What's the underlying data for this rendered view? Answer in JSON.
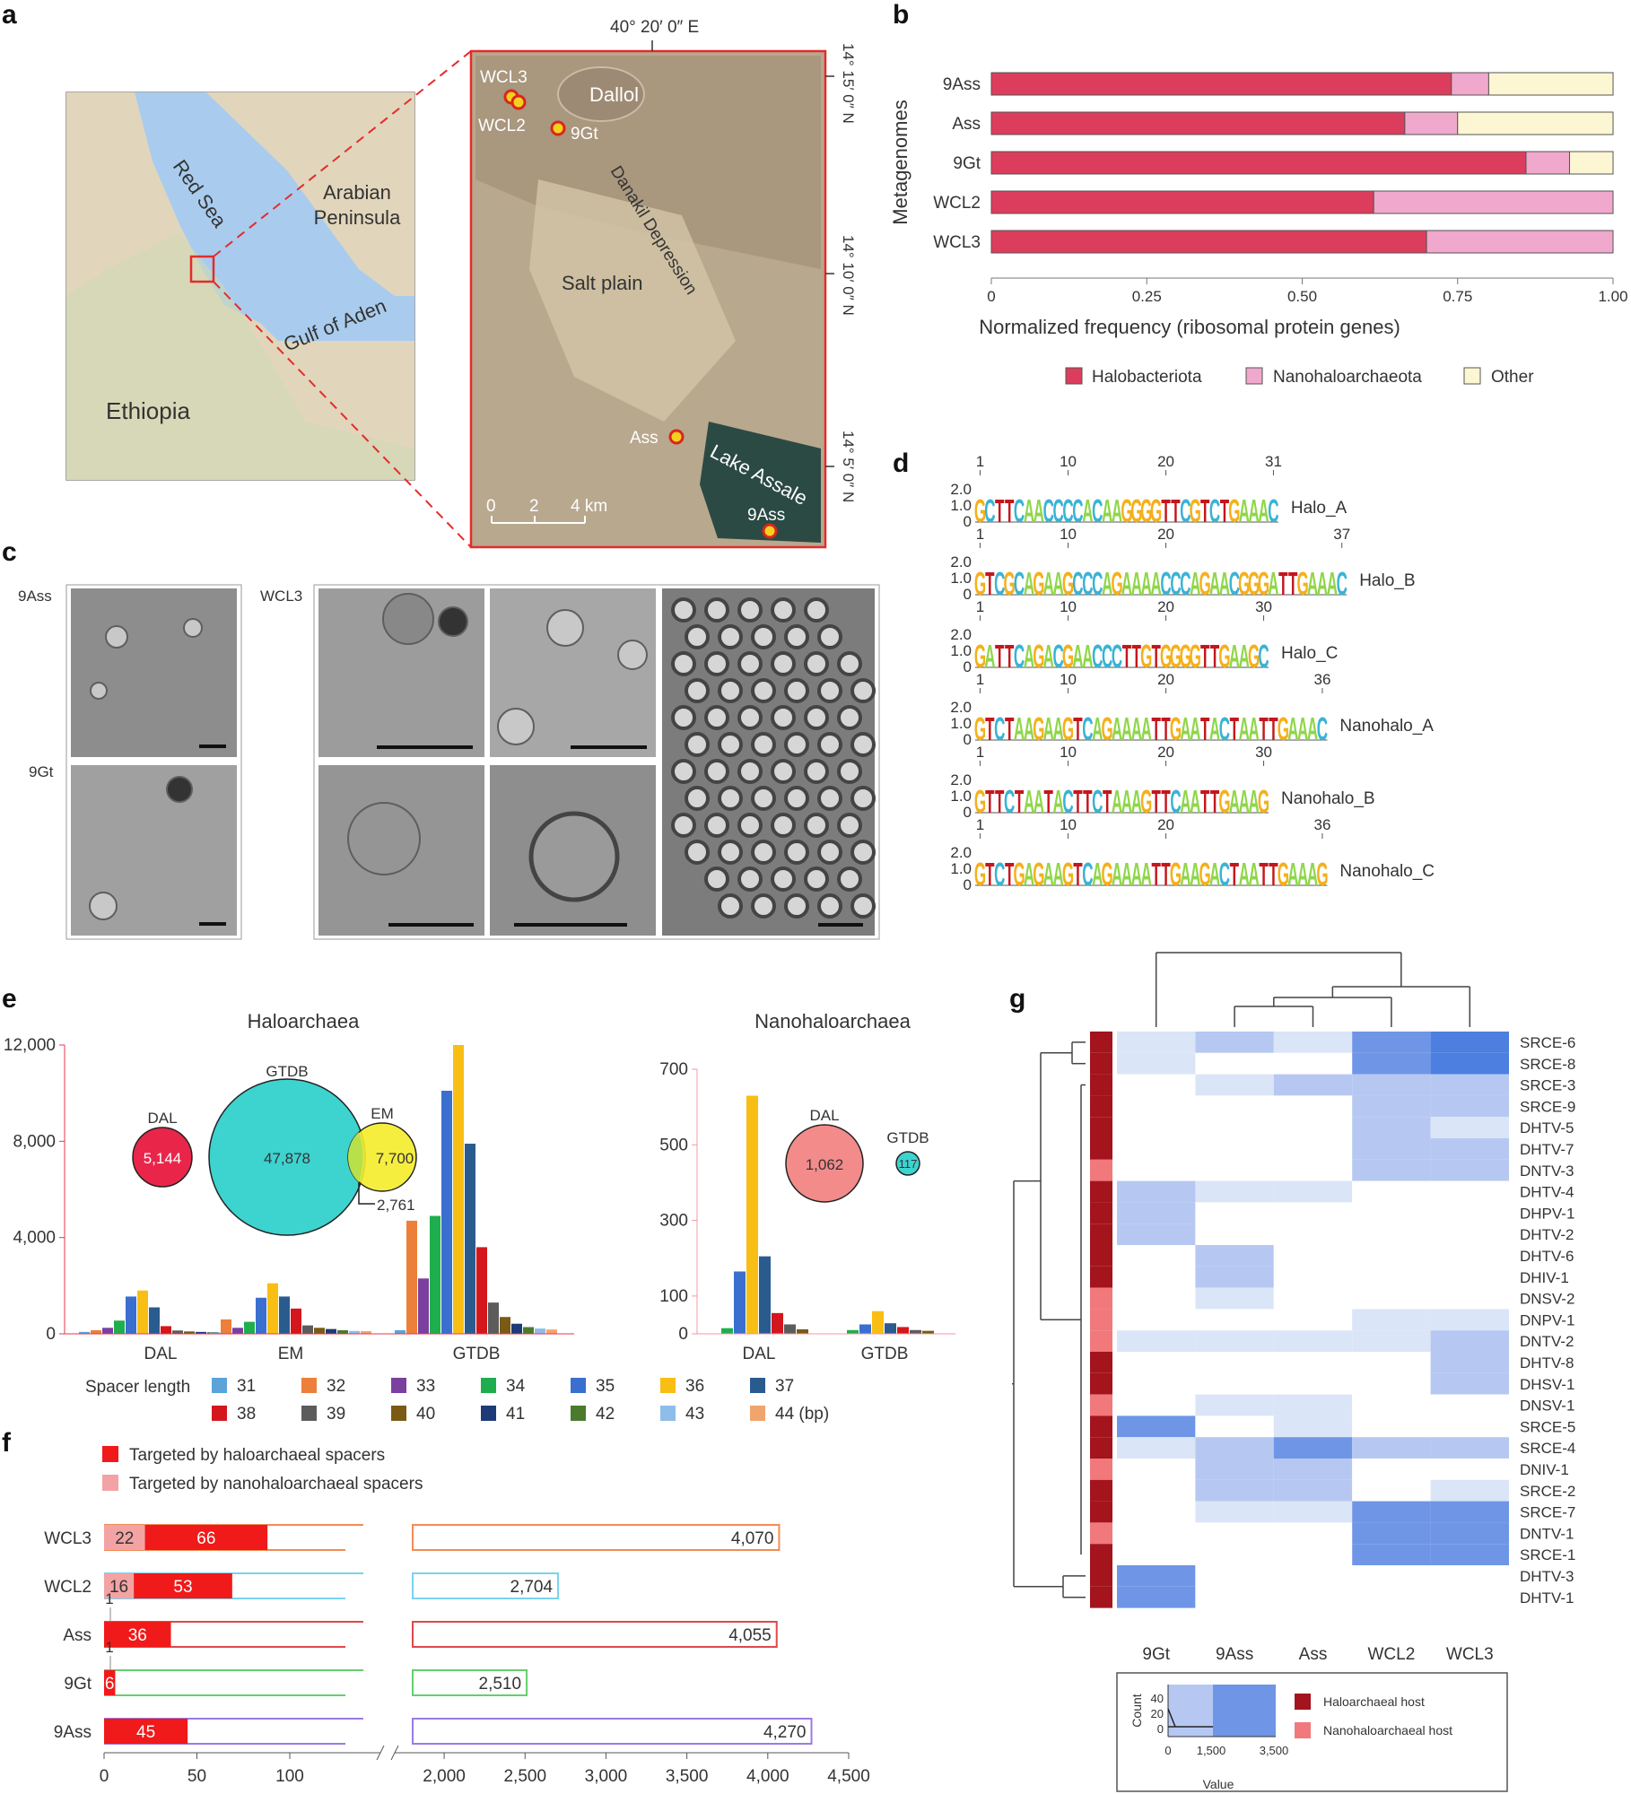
{
  "panels": {
    "a": {
      "label": "a",
      "map_labels": {
        "red_sea": "Red Sea",
        "arabian": [
          "Arabian",
          "Peninsula"
        ],
        "gulf": "Gulf of Aden",
        "ethiopia": "Ethiopia"
      },
      "inset": {
        "lon": "40° 20′ 0″ E",
        "lat": [
          "14° 15′ 0″ N",
          "14° 10′ 0″ N",
          "14° 5′ 0″ N"
        ],
        "places": {
          "dallol": "Dallol",
          "danakil": "Danakil Depression",
          "salt_plain": "Salt plain",
          "lake": "Lake Assale"
        },
        "sites": [
          "WCL3",
          "WCL2",
          "9Gt",
          "Ass",
          "9Ass"
        ],
        "scale": [
          "0",
          "2",
          "4 km"
        ]
      }
    },
    "b": {
      "label": "b",
      "chart_data": {
        "type": "bar",
        "orientation": "horizontal",
        "stacked": true,
        "categories": [
          "9Ass",
          "Ass",
          "9Gt",
          "WCL2",
          "WCL3"
        ],
        "series": [
          {
            "name": "Halobacteriota",
            "color": "#dc3d5c",
            "values": [
              0.74,
              0.665,
              0.86,
              0.615,
              0.7
            ]
          },
          {
            "name": "Nanohaloarchaeota",
            "color": "#f0a8cc",
            "values": [
              0.06,
              0.085,
              0.07,
              0.385,
              0.3
            ]
          },
          {
            "name": "Other",
            "color": "#fdf6d2",
            "values": [
              0.2,
              0.25,
              0.07,
              0,
              0
            ]
          }
        ],
        "xlabel": "Normalized frequency (ribosomal protein genes)",
        "ylabel": "Metagenomes",
        "xlim": [
          0,
          1
        ],
        "xticks": [
          "0",
          "0.25",
          "0.50",
          "0.75",
          "1.00"
        ]
      }
    },
    "c": {
      "label": "c",
      "labels": [
        "9Ass",
        "9Gt",
        "WCL3"
      ]
    },
    "d": {
      "label": "d",
      "logos": [
        {
          "name": "Halo_A",
          "seq": "GCTTCAACCCCACAAGGGGTTCGTCTGAAAC",
          "marks": [
            "1",
            "10",
            "20",
            "31"
          ]
        },
        {
          "name": "Halo_B",
          "seq": "GTCGCAGAAGCCCAGAAAACCCAGAACGGGATTGAAAC",
          "marks": [
            "1",
            "10",
            "20",
            "37"
          ]
        },
        {
          "name": "Halo_C",
          "seq": "GATTCAGACGAACCCTTGTGGGGTTGAAGC",
          "marks": [
            "1",
            "10",
            "20",
            "30"
          ]
        },
        {
          "name": "Nanohalo_A",
          "seq": "GTCTAAGAAGTCAGAAAATTGAATACTAATTGAAAC",
          "marks": [
            "1",
            "10",
            "20",
            "36"
          ]
        },
        {
          "name": "Nanohalo_B",
          "seq": "GTTCTAATACTTCTAAAGTTCAATTGAAAG",
          "marks": [
            "1",
            "10",
            "20",
            "30"
          ]
        },
        {
          "name": "Nanohalo_C",
          "seq": "GTCTGAGAAGTCAGAAAATTGAAGACTAATTGAAAG",
          "marks": [
            "1",
            "10",
            "20",
            "36"
          ]
        }
      ],
      "yticks": [
        "2.0",
        "1.0",
        "0"
      ]
    },
    "e": {
      "label": "e",
      "titles": {
        "halo": "Haloarchaea",
        "nano": "Nanohaloarchaea"
      },
      "venn": {
        "dal_label": "DAL",
        "dal_value": "5,144",
        "gtdb_label": "GTDB",
        "gtdb_value": "47,878",
        "em_label": "EM",
        "em_value": "7,700",
        "overlap_value": "2,761",
        "nano_dal_label": "DAL",
        "nano_dal_value": "1,062",
        "nano_gtdb_label": "GTDB",
        "nano_gtdb_value": "117"
      },
      "legend_title": "Spacer length",
      "legend_items": [
        {
          "label": "31",
          "color": "#5ba3d9"
        },
        {
          "label": "32",
          "color": "#ec7f3a"
        },
        {
          "label": "33",
          "color": "#7b3fa0"
        },
        {
          "label": "34",
          "color": "#1fae4e"
        },
        {
          "label": "35",
          "color": "#3a6fd0"
        },
        {
          "label": "36",
          "color": "#f8be13"
        },
        {
          "label": "37",
          "color": "#2a5b8f"
        },
        {
          "label": "38",
          "color": "#d4171d"
        },
        {
          "label": "39",
          "color": "#5c5c5c"
        },
        {
          "label": "40",
          "color": "#7a5a15"
        },
        {
          "label": "41",
          "color": "#1e3a78"
        },
        {
          "label": "42",
          "color": "#4a7a2e"
        },
        {
          "label": "43",
          "color": "#8fbde9"
        },
        {
          "label": "44 (bp)",
          "color": "#f2a46d"
        }
      ],
      "chart_data": [
        {
          "type": "bar",
          "title": "Haloarchaea",
          "categories": [
            "DAL",
            "EM",
            "GTDB"
          ],
          "ylim": [
            0,
            12000
          ],
          "yticks": [
            "0",
            "4,000",
            "8,000",
            "12,000"
          ],
          "series": [
            {
              "name": "31",
              "values": [
                80,
                60,
                150
              ]
            },
            {
              "name": "32",
              "values": [
                150,
                600,
                4700
              ]
            },
            {
              "name": "33",
              "values": [
                250,
                250,
                2300
              ]
            },
            {
              "name": "34",
              "values": [
                550,
                500,
                4900
              ]
            },
            {
              "name": "35",
              "values": [
                1550,
                1500,
                10100
              ]
            },
            {
              "name": "36",
              "values": [
                1800,
                2100,
                12000
              ]
            },
            {
              "name": "37",
              "values": [
                1100,
                1550,
                7900
              ]
            },
            {
              "name": "38",
              "values": [
                320,
                1050,
                3600
              ]
            },
            {
              "name": "39",
              "values": [
                140,
                350,
                1300
              ]
            },
            {
              "name": "40",
              "values": [
                100,
                250,
                700
              ]
            },
            {
              "name": "41",
              "values": [
                80,
                200,
                420
              ]
            },
            {
              "name": "42",
              "values": [
                70,
                150,
                280
              ]
            },
            {
              "name": "43",
              "values": [
                50,
                120,
                220
              ]
            },
            {
              "name": "44 (bp)",
              "values": [
                40,
                110,
                180
              ]
            }
          ]
        },
        {
          "type": "bar",
          "title": "Nanohaloarchaea",
          "categories": [
            "DAL",
            "GTDB"
          ],
          "ylim": [
            0,
            700
          ],
          "yticks": [
            "0",
            "100",
            "300",
            "500",
            "700"
          ],
          "series": [
            {
              "name": "31",
              "values": [
                0,
                0
              ]
            },
            {
              "name": "34",
              "values": [
                15,
                10
              ]
            },
            {
              "name": "35",
              "values": [
                165,
                25
              ]
            },
            {
              "name": "36",
              "values": [
                630,
                60
              ]
            },
            {
              "name": "37",
              "values": [
                205,
                28
              ]
            },
            {
              "name": "38",
              "values": [
                55,
                18
              ]
            },
            {
              "name": "39",
              "values": [
                25,
                10
              ]
            },
            {
              "name": "40",
              "values": [
                12,
                8
              ]
            }
          ]
        }
      ]
    },
    "f": {
      "label": "f",
      "legend": [
        {
          "label": "Targeted by haloarchaeal spacers",
          "color": "#f01a1a"
        },
        {
          "label": "Targeted by nanohaloarchaeal spacers",
          "color": "#f3a3a3"
        }
      ],
      "chart_data": {
        "type": "bar",
        "orientation": "horizontal",
        "broken_axis": [
          130,
          1700
        ],
        "xticks": [
          "0",
          "50",
          "100",
          "2,000",
          "2,500",
          "3,000",
          "3,500",
          "4,000",
          "4,500"
        ],
        "categories": [
          "WCL3",
          "WCL2",
          "Ass",
          "9Gt",
          "9Ass"
        ],
        "colors": [
          "#f28c54",
          "#79d3ee",
          "#e0474b",
          "#65cf6e",
          "#9b7be3"
        ],
        "totals": [
          4070,
          2704,
          4055,
          2510,
          4270
        ],
        "total_labels": [
          "4,070",
          "2,704",
          "4,055",
          "2,510",
          "4,270"
        ],
        "nano": [
          22,
          16,
          1,
          1,
          0
        ],
        "halo": [
          66,
          53,
          36,
          6,
          45
        ],
        "nano_labels": [
          "22",
          "16",
          "1",
          "1",
          ""
        ],
        "halo_labels": [
          "66",
          "53",
          "36",
          "6",
          "45"
        ]
      }
    },
    "g": {
      "label": "g",
      "chart_data": {
        "type": "heatmap",
        "columns": [
          "9Gt",
          "9Ass",
          "Ass",
          "WCL2",
          "WCL3"
        ],
        "rows": [
          "SRCE-6",
          "SRCE-8",
          "SRCE-3",
          "SRCE-9",
          "DHTV-5",
          "DHTV-7",
          "DNTV-3",
          "DHTV-4",
          "DHPV-1",
          "DHTV-2",
          "DHTV-6",
          "DHIV-1",
          "DNSV-2",
          "DNPV-1",
          "DNTV-2",
          "DHTV-8",
          "DHSV-1",
          "DNSV-1",
          "SRCE-5",
          "SRCE-4",
          "DNIV-1",
          "SRCE-2",
          "SRCE-7",
          "DNTV-1",
          "SRCE-1",
          "DHTV-3",
          "DHTV-1"
        ],
        "host": [
          "halo",
          "halo",
          "halo",
          "halo",
          "halo",
          "halo",
          "nano",
          "halo",
          "halo",
          "halo",
          "halo",
          "halo",
          "nano",
          "nano",
          "nano",
          "halo",
          "halo",
          "nano",
          "halo",
          "halo",
          "nano",
          "halo",
          "halo",
          "nano",
          "halo",
          "halo",
          "halo"
        ],
        "levels": [
          [
            1,
            2,
            1,
            3,
            4
          ],
          [
            1,
            0,
            0,
            3,
            4
          ],
          [
            0,
            1,
            2,
            2,
            2
          ],
          [
            0,
            0,
            0,
            2,
            2
          ],
          [
            0,
            0,
            0,
            2,
            1
          ],
          [
            0,
            0,
            0,
            2,
            2
          ],
          [
            0,
            0,
            0,
            2,
            2
          ],
          [
            2,
            1,
            1,
            0,
            0
          ],
          [
            2,
            0,
            0,
            0,
            0
          ],
          [
            2,
            0,
            0,
            0,
            0
          ],
          [
            0,
            2,
            0,
            0,
            0
          ],
          [
            0,
            2,
            0,
            0,
            0
          ],
          [
            0,
            1,
            0,
            0,
            0
          ],
          [
            0,
            0,
            0,
            1,
            1
          ],
          [
            1,
            1,
            1,
            1,
            2
          ],
          [
            0,
            0,
            0,
            0,
            2
          ],
          [
            0,
            0,
            0,
            0,
            2
          ],
          [
            0,
            1,
            1,
            0,
            0
          ],
          [
            3,
            0,
            1,
            0,
            0
          ],
          [
            1,
            2,
            3,
            2,
            2
          ],
          [
            0,
            2,
            2,
            0,
            0
          ],
          [
            0,
            2,
            2,
            0,
            1
          ],
          [
            0,
            1,
            1,
            3,
            3
          ],
          [
            0,
            0,
            0,
            3,
            3
          ],
          [
            0,
            0,
            0,
            3,
            3
          ],
          [
            3,
            0,
            0,
            0,
            0
          ],
          [
            3,
            0,
            0,
            0,
            0
          ]
        ],
        "level_colors": [
          "#ffffff",
          "#dbe5f8",
          "#b6c8f2",
          "#6f96e6",
          "#4d7fe0"
        ],
        "host_colors": {
          "halo": "#a3141d",
          "nano": "#f1787b"
        },
        "host_legend": [
          {
            "label": "Haloarchaeal host",
            "color": "#a3141d"
          },
          {
            "label": "Nanohaloarchaeal host",
            "color": "#f1787b"
          }
        ],
        "key": {
          "xlabel": "Value",
          "ylabel": "Count",
          "xticks": [
            "0",
            "1,500",
            "3,500"
          ],
          "yticks": [
            "40",
            "20",
            "0"
          ]
        }
      }
    }
  }
}
